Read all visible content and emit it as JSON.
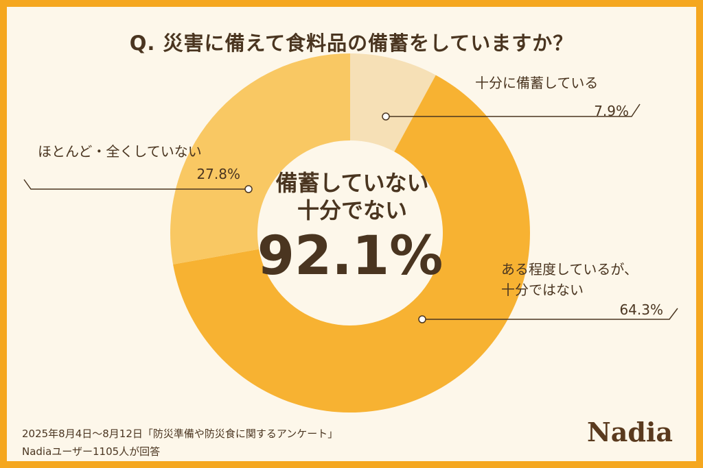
{
  "chart_data": {
    "type": "donut",
    "title": "Q. 災害に備えて食料品の備蓄をしていますか？",
    "categories": [
      "十分に備蓄している",
      "ある程度しているが、\n十分ではない",
      "ほとんど・全くしていない"
    ],
    "values": [
      7.9,
      64.3,
      27.8
    ],
    "value_labels": [
      "7.9%",
      "64.3%",
      "27.8%"
    ],
    "colors": [
      "#f6e0b6",
      "#f7b232",
      "#f9c863"
    ],
    "center_text": [
      "備蓄していない",
      "十分でない"
    ],
    "center_value": 92.1,
    "center_value_label": "92.1%",
    "footnotes": [
      "2025年8月4日～8月12日「防災準備や防災食に関するアンケート」",
      "Nadiaユーザー1105人が回答"
    ],
    "logo": "Nadia"
  }
}
